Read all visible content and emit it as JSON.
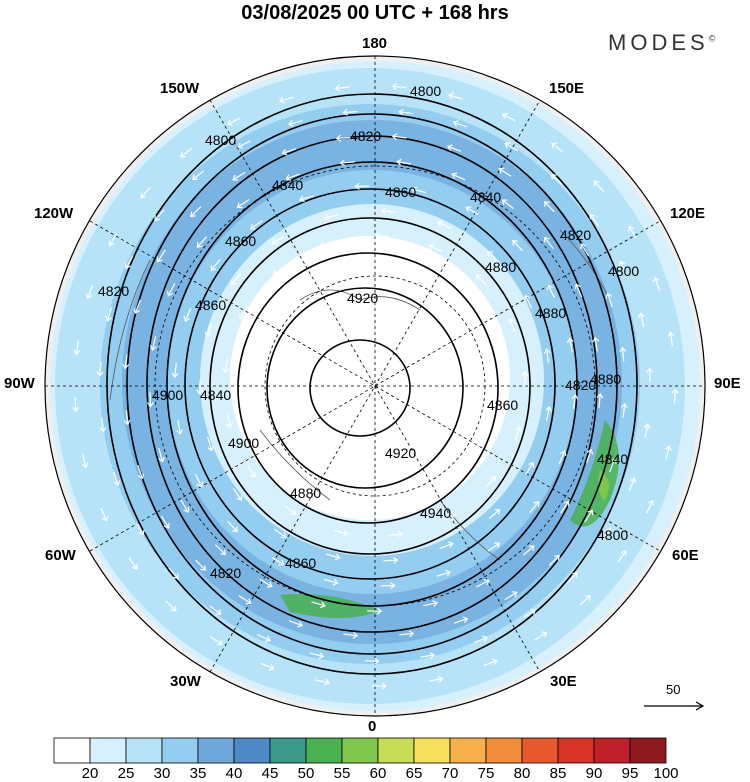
{
  "title": "03/08/2025  00 UTC  + 168 hrs",
  "brand": "MODES",
  "brand_mark": "©",
  "longitude_labels": {
    "top": "180",
    "bottom": "0",
    "left": "90W",
    "right": "90E",
    "upper_left_30": "150W",
    "upper_left_60": "120W",
    "upper_right_30": "150E",
    "upper_right_60": "120E",
    "lower_left_30": "30W",
    "lower_left_60": "60W",
    "lower_right_30": "30E",
    "lower_right_60": "60E"
  },
  "contour_labels": [
    "4800",
    "4800",
    "4820",
    "4840",
    "4840",
    "4860",
    "4820",
    "4860",
    "4800",
    "4820",
    "4880",
    "4860",
    "4920",
    "4880",
    "4860",
    "4900",
    "4840",
    "4880",
    "4840",
    "4900",
    "4920",
    "4940",
    "4820",
    "4880",
    "4860",
    "4820",
    "4800"
  ],
  "colorbar": {
    "ticks": [
      "20",
      "25",
      "30",
      "35",
      "40",
      "45",
      "50",
      "55",
      "60",
      "65",
      "70",
      "75",
      "80",
      "85",
      "90",
      "95",
      "100"
    ],
    "colors": [
      "#ffffff",
      "#d6f1fd",
      "#b6e3f8",
      "#93cdf0",
      "#6fa9dc",
      "#4e8ac6",
      "#3d9a8a",
      "#49b24f",
      "#7fc64d",
      "#c7dd55",
      "#f7e05b",
      "#f6b14c",
      "#f08c3a",
      "#e8592d",
      "#d93228",
      "#c0202a",
      "#8e1a1e"
    ]
  },
  "vector_reference": "50",
  "colors": {
    "jet_light": "#b6e3f8",
    "jet_mid": "#93cdf0",
    "jet_core": "#6fa9dc",
    "jet_max": "#49b24f",
    "land_gray": "#efefef",
    "contour": "#000000",
    "vector": "#ffffff"
  }
}
